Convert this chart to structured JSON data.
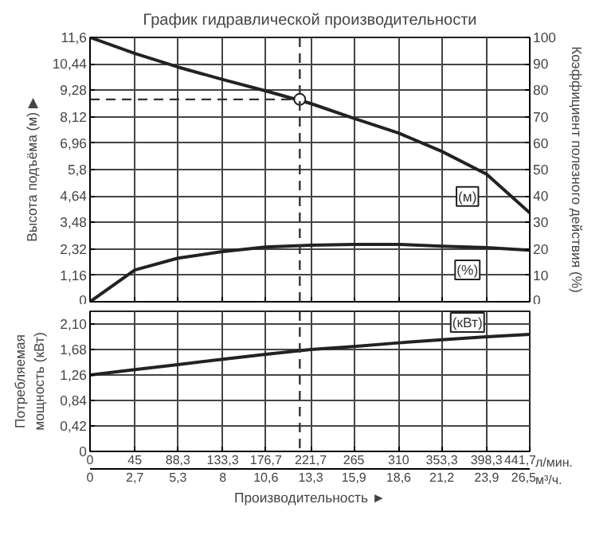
{
  "chart_data": [
    {
      "type": "line",
      "title": "График гидравлической производительности",
      "ylabel": "Высота подъёма (м) ▶",
      "y2label": "Коэффициент полезного действия (%)",
      "x": [
        0,
        45,
        88.3,
        133.3,
        176.7,
        221.7,
        265,
        310,
        353.3,
        398.3,
        441.7
      ],
      "series": [
        {
          "name": "(м)",
          "color": "#222222",
          "values": [
            11.6,
            10.9,
            10.3,
            9.75,
            9.25,
            8.7,
            8.05,
            7.4,
            6.6,
            5.6,
            3.9
          ]
        },
        {
          "name": "(%)",
          "axis": "y2",
          "color": "#222222",
          "values": [
            0,
            12,
            16.5,
            19,
            20.7,
            21.4,
            21.7,
            21.7,
            21,
            20.5,
            19.5
          ]
        },
        {
          "type": "scatter",
          "marker": "circle",
          "color": "#222222",
          "x": [
            210.7
          ],
          "values": [
            8.88
          ]
        }
      ],
      "xlim": [
        0,
        441.7
      ],
      "ylim": [
        0,
        11.6
      ],
      "yticks": [
        0,
        {
          "value": 1.16,
          "label": "1,16"
        },
        {
          "value": 2.32,
          "label": "2,32"
        },
        {
          "value": 3.48,
          "label": "3,48"
        },
        {
          "value": 4.64,
          "label": "4,64"
        },
        {
          "value": 5.8,
          "label": "5,8"
        },
        {
          "value": 6.96,
          "label": "6,96"
        },
        {
          "value": 8.12,
          "label": "8,12"
        },
        {
          "value": 9.28,
          "label": "9,28"
        },
        {
          "value": 10.44,
          "label": "10,44"
        },
        {
          "value": 11.6,
          "label": "11,6"
        }
      ],
      "y2lim": [
        0,
        100
      ],
      "y2ticks": [
        0,
        10,
        20,
        30,
        40,
        50,
        60,
        70,
        80,
        90,
        100
      ],
      "xticks": [
        {
          "value": 0,
          "label": null
        },
        {
          "value": 45,
          "label": null
        },
        {
          "value": 88.3,
          "label": null
        },
        {
          "value": 133.3,
          "label": null
        },
        {
          "value": 176.7,
          "label": null
        },
        {
          "value": 221.7,
          "label": null
        },
        {
          "value": 265,
          "label": null
        },
        {
          "value": 310,
          "label": null
        },
        {
          "value": 353.3,
          "label": null
        },
        {
          "value": 398.3,
          "label": null
        },
        {
          "value": 441.7,
          "label": null
        }
      ],
      "tick_labels": "y",
      "grid": true,
      "ref_lines": [
        {
          "axis": "x",
          "value": 210.7,
          "line_style": "dashed"
        },
        {
          "axis": "y",
          "value": 8.88,
          "line_style": "dashed"
        }
      ]
    },
    {
      "type": "line",
      "ylabel": "Потребляемая мощность (кВт)",
      "xlabel": "Производительность ►",
      "x": [
        0,
        45,
        88.3,
        133.3,
        176.7,
        221.7,
        265,
        310,
        353.3,
        398.3,
        441.7
      ],
      "series": [
        {
          "name": "(кВт)",
          "color": "#222222",
          "values": [
            1.26,
            1.35,
            1.43,
            1.52,
            1.6,
            1.68,
            1.73,
            1.79,
            1.84,
            1.89,
            1.93
          ]
        }
      ],
      "xlim": [
        0,
        441.7
      ],
      "ylim": [
        0,
        2.31
      ],
      "yticks": [
        0,
        {
          "value": 0.42,
          "label": "0,42"
        },
        {
          "value": 0.84,
          "label": "0,84"
        },
        {
          "value": 1.26,
          "label": "1,26"
        },
        {
          "value": 1.68,
          "label": "1,68"
        },
        {
          "value": 2.1,
          "label": "2,10"
        }
      ],
      "xticks": [
        0,
        45,
        {
          "value": 88.3,
          "label": "88,3"
        },
        {
          "value": 133.3,
          "label": "133,3"
        },
        {
          "value": 176.7,
          "label": "176,7"
        },
        {
          "value": 221.7,
          "label": "221,7"
        },
        265,
        310,
        {
          "value": 353.3,
          "label": "353,3"
        },
        {
          "value": 398.3,
          "label": "398,3"
        },
        {
          "value": 441.7,
          "label": "441,7"
        }
      ],
      "x2lim": [
        0,
        26.5
      ],
      "x2ticks": [
        0,
        {
          "value": 2.7,
          "label": "2,7"
        },
        {
          "value": 5.3,
          "label": "5,3"
        },
        8,
        {
          "value": 10.6,
          "label": "10,6"
        },
        {
          "value": 13.3,
          "label": "13,3"
        },
        {
          "value": 15.9,
          "label": "15,9"
        },
        {
          "value": 18.6,
          "label": "18,6"
        },
        {
          "value": 21.2,
          "label": "21,2"
        },
        {
          "value": 23.9,
          "label": "23,9"
        },
        {
          "value": 26.5,
          "label": "26,5"
        }
      ],
      "grid": true,
      "ref_lines": [
        {
          "axis": "x",
          "value": 210.7,
          "line_style": "dashed"
        }
      ],
      "annotations": [
        "л/мин.",
        "м³/ч."
      ]
    }
  ]
}
